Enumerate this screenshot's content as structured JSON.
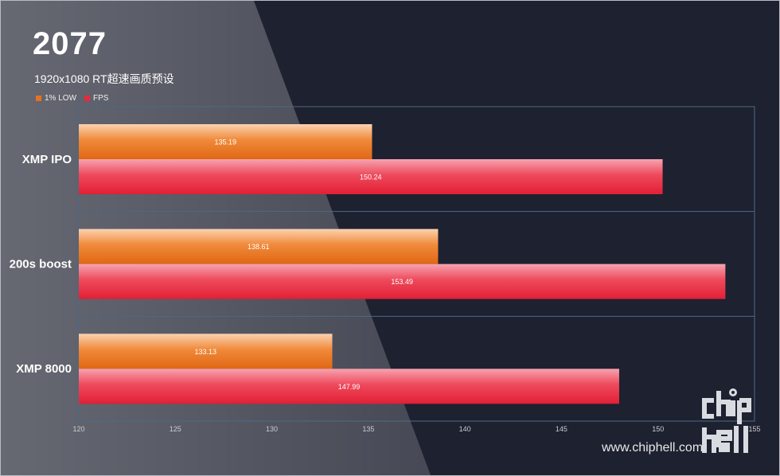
{
  "chart_data": {
    "type": "bar",
    "orientation": "horizontal",
    "title": "2077",
    "subtitle": "1920x1080  RT超速画质预设",
    "categories": [
      "XMP IPO",
      "200s boost",
      "XMP 8000"
    ],
    "series": [
      {
        "name": "1% LOW",
        "values": [
          135.19,
          138.61,
          133.13
        ],
        "color": "#e8711f"
      },
      {
        "name": "FPS",
        "values": [
          150.24,
          153.49,
          147.99
        ],
        "color": "#e8293e"
      }
    ],
    "xlim": [
      120,
      155
    ],
    "xticks": [
      "120",
      "125",
      "130",
      "135",
      "140",
      "145",
      "150",
      "155"
    ],
    "grid": false,
    "legend_position": "top-left"
  },
  "watermark": {
    "url": "www.chiphell.com",
    "logo_text": "chiphell"
  },
  "colors": {
    "background": "#1e2130",
    "low_bar": "#e8711f",
    "fps_bar": "#e8293e",
    "frame_line": "#4d6a86"
  }
}
